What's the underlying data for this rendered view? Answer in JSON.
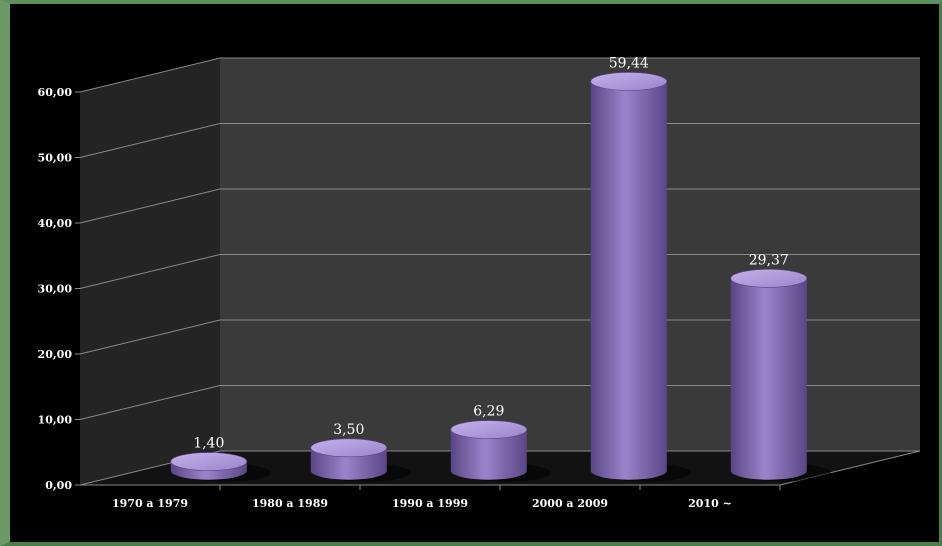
{
  "chart_data": {
    "type": "bar",
    "style": "3d-cylinder",
    "categories": [
      "1970 a 1979",
      "1980 a 1989",
      "1990 a 1999",
      "2000 a 2009",
      "2010 ~"
    ],
    "values": [
      1.4,
      3.5,
      6.29,
      59.44,
      29.37
    ],
    "data_labels": [
      "1,40",
      "3,50",
      "6,29",
      "59,44",
      "29,37"
    ],
    "y_ticks": [
      "0,00",
      "10,00",
      "20,00",
      "30,00",
      "40,00",
      "50,00",
      "60,00"
    ],
    "ylim": [
      0,
      60
    ],
    "grid": true,
    "legend": "none",
    "colors": {
      "bar": "#9b84cc",
      "bar_light": "#c4b2ea",
      "bar_dark": "#5a4686",
      "back_wall": "#3a3a3a",
      "side_wall": "#242424",
      "floor": "#121212",
      "gridline": "#8a8a8a",
      "text": "#ffffff",
      "frame": "#6b9a66",
      "background": "#000000"
    }
  }
}
